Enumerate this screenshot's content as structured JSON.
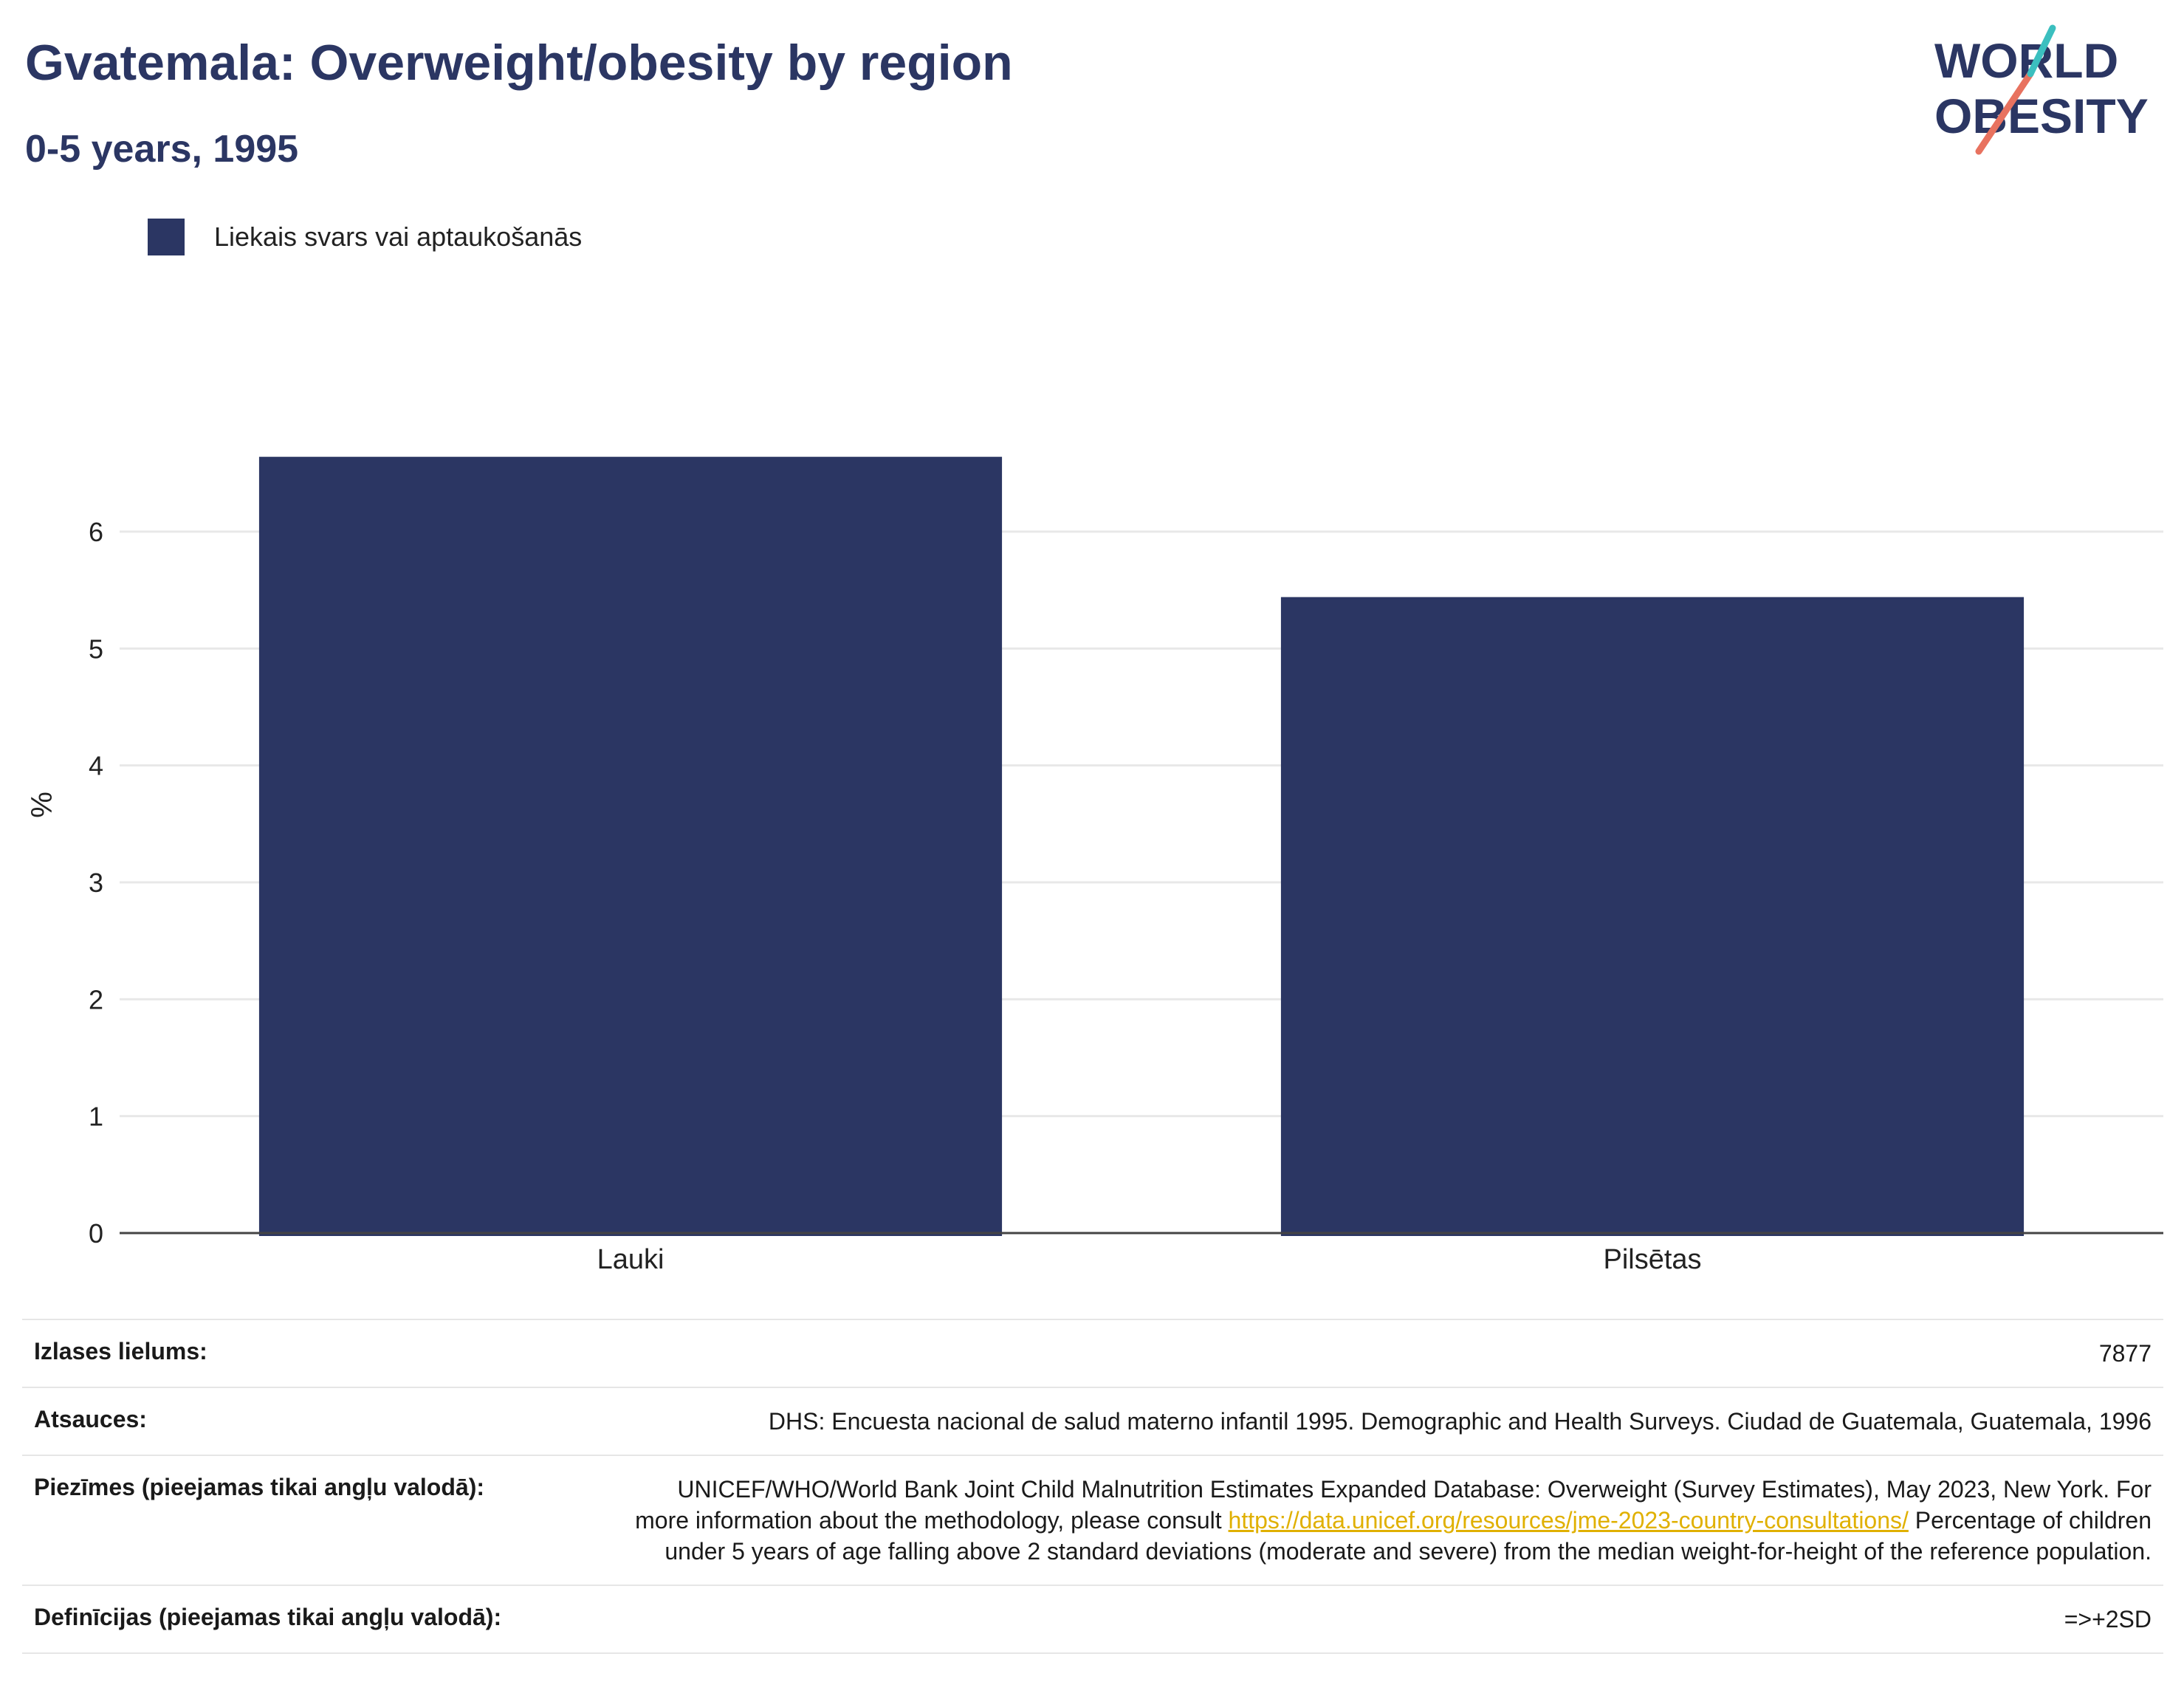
{
  "header": {
    "title": "Gvatemala: Overweight/obesity by region",
    "subtitle": "0-5 years, 1995"
  },
  "logo": {
    "line1": "WORLD",
    "line2": "OBESITY"
  },
  "colors": {
    "bar": "#2b3663",
    "text": "#2b3663",
    "accent_teal": "#3bbfbf",
    "accent_coral": "#e8725f",
    "link": "#e0b000"
  },
  "chart_data": {
    "type": "bar",
    "categories": [
      "Lauki",
      "Pilsētas"
    ],
    "series": [
      {
        "name": "Liekais svars vai aptaukošanās",
        "values": [
          6.64,
          5.44
        ]
      }
    ],
    "ylabel": "%",
    "ylim": [
      0,
      7.2
    ],
    "yticks": [
      0,
      1,
      2,
      3,
      4,
      5,
      6
    ],
    "grid": true,
    "legend": "top-left"
  },
  "meta": {
    "sample_label": "Izlases lielums:",
    "sample_value": "7877",
    "refs_label": "Atsauces:",
    "refs_value": "DHS: Encuesta nacional de salud materno infantil 1995. Demographic and Health Surveys. Ciudad de Guatemala, Guatemala, 1996",
    "notes_label": "Piezīmes (pieejamas tikai angļu valodā):",
    "notes_text1": "UNICEF/WHO/World Bank Joint Child Malnutrition Estimates Expanded Database: Overweight (Survey Estimates), May 2023, New York. For more information about the methodology, please consult",
    "notes_link": "https://data.unicef.org/resources/jme-2023-country-consultations/",
    "notes_text2": "Percentage of children under 5 years of age falling above 2 standard deviations (moderate and severe) from the median weight-for-height of the reference population.",
    "defs_label": "Definīcijas (pieejamas tikai angļu valodā):",
    "defs_value": "=>+2SD"
  }
}
